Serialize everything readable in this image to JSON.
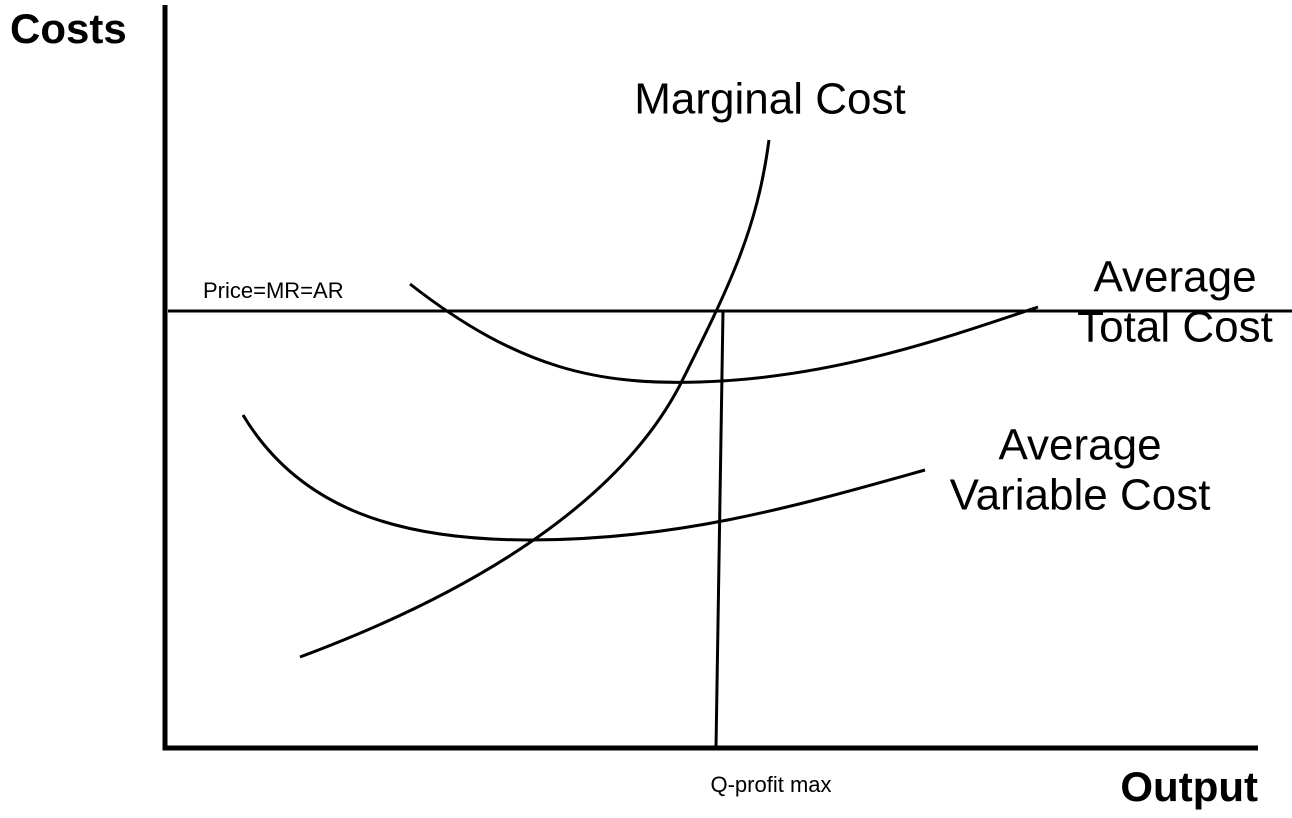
{
  "axes": {
    "y_label": "Costs",
    "x_label": "Output"
  },
  "curves": {
    "marginal_cost": {
      "label": "Marginal Cost"
    },
    "average_total_cost": {
      "label_lines": [
        "Average",
        "Total Cost"
      ]
    },
    "average_variable_cost": {
      "label_lines": [
        "Average",
        "Variable Cost"
      ]
    },
    "price": {
      "label": "Price=MR=AR"
    },
    "quantity": {
      "label": "Q-profit max"
    }
  }
}
